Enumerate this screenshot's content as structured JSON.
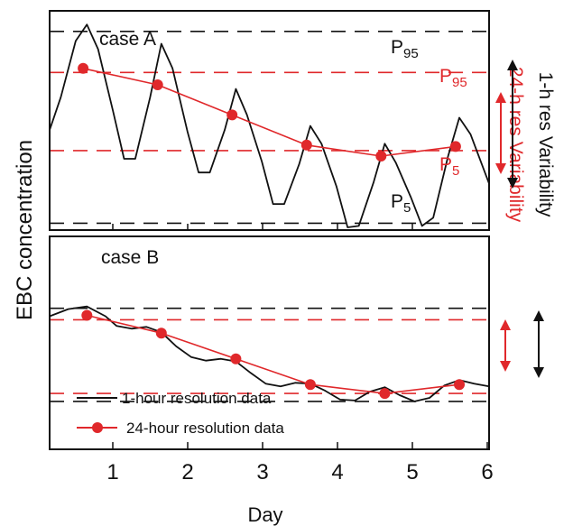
{
  "colors": {
    "black": "#111111",
    "red": "#e0282b"
  },
  "chart_data": [
    {
      "type": "line",
      "panel_label": "case A",
      "ylabel": "EBC concentration",
      "xlabel": "Day",
      "xlim": [
        0.1,
        6
      ],
      "x_ticks": [
        "1",
        "2",
        "3",
        "4",
        "5",
        "6"
      ],
      "series": [
        {
          "name": "1-hour resolution data",
          "color": "#111111",
          "x": [
            0.1,
            0.25,
            0.45,
            0.6,
            0.75,
            0.95,
            1.1,
            1.25,
            1.45,
            1.6,
            1.75,
            1.95,
            2.1,
            2.25,
            2.45,
            2.6,
            2.75,
            2.95,
            3.1,
            3.25,
            3.45,
            3.6,
            3.75,
            3.95,
            4.1,
            4.25,
            4.45,
            4.6,
            4.75,
            4.95,
            5.1,
            5.25,
            5.45,
            5.6,
            5.75,
            6.0
          ],
          "y": [
            73,
            97,
            138,
            150,
            132,
            87,
            52,
            52,
            97,
            136,
            118,
            72,
            42,
            42,
            73,
            103,
            84,
            50,
            19,
            19,
            48,
            76,
            63,
            32,
            2,
            3,
            35,
            63,
            49,
            24,
            3,
            9,
            54,
            82,
            70,
            34
          ]
        },
        {
          "name": "24-hour resolution data",
          "color": "#e0282b",
          "x": [
            0.55,
            1.55,
            2.55,
            3.55,
            4.55,
            5.55
          ],
          "y": [
            118,
            106,
            84,
            62,
            54,
            61
          ]
        }
      ],
      "reference_lines": [
        {
          "label_prefix": "P",
          "label_sub": "95",
          "color": "#111111",
          "y": 145
        },
        {
          "label_prefix": "P",
          "label_sub": "95",
          "color": "#e0282b",
          "y": 115
        },
        {
          "label_prefix": "P",
          "label_sub": "5",
          "color": "#e0282b",
          "y": 58
        },
        {
          "label_prefix": "P",
          "label_sub": "5",
          "color": "#111111",
          "y": 5
        }
      ],
      "side_annotations": [
        {
          "text": "1-h res Variability",
          "color": "#111111"
        },
        {
          "text": "24-h res Variability",
          "color": "#e0282b"
        }
      ]
    },
    {
      "type": "line",
      "panel_label": "case B",
      "xlabel": "Day",
      "xlim": [
        0.1,
        6
      ],
      "x_ticks": [
        "1",
        "2",
        "3",
        "4",
        "5",
        "6"
      ],
      "series": [
        {
          "name": "1-hour resolution data",
          "color": "#111111",
          "x": [
            0.1,
            0.35,
            0.6,
            0.85,
            1.0,
            1.2,
            1.4,
            1.6,
            1.8,
            2.0,
            2.2,
            2.4,
            2.6,
            2.8,
            3.0,
            3.2,
            3.4,
            3.6,
            3.8,
            4.0,
            4.2,
            4.4,
            4.6,
            4.8,
            5.0,
            5.2,
            5.4,
            5.6,
            5.8,
            6.0
          ],
          "y": [
            150,
            158,
            161,
            150,
            139,
            136,
            138,
            132,
            116,
            104,
            100,
            102,
            99,
            86,
            74,
            71,
            75,
            74,
            66,
            56,
            55,
            65,
            70,
            61,
            54,
            58,
            72,
            78,
            74,
            71
          ]
        },
        {
          "name": "24-hour resolution data",
          "color": "#e0282b",
          "x": [
            0.6,
            1.6,
            2.6,
            3.6,
            4.6,
            5.6
          ],
          "y": [
            151,
            131,
            102,
            73,
            63,
            73
          ]
        }
      ],
      "reference_lines": [
        {
          "color": "#111111",
          "y": 159
        },
        {
          "color": "#e0282b",
          "y": 146
        },
        {
          "color": "#e0282b",
          "y": 63
        },
        {
          "color": "#111111",
          "y": 54
        }
      ]
    }
  ],
  "legend": [
    {
      "label": "1-hour resolution data",
      "color": "#111111",
      "marker": false
    },
    {
      "label": "24-hour resolution data",
      "color": "#e0282b",
      "marker": true
    }
  ]
}
